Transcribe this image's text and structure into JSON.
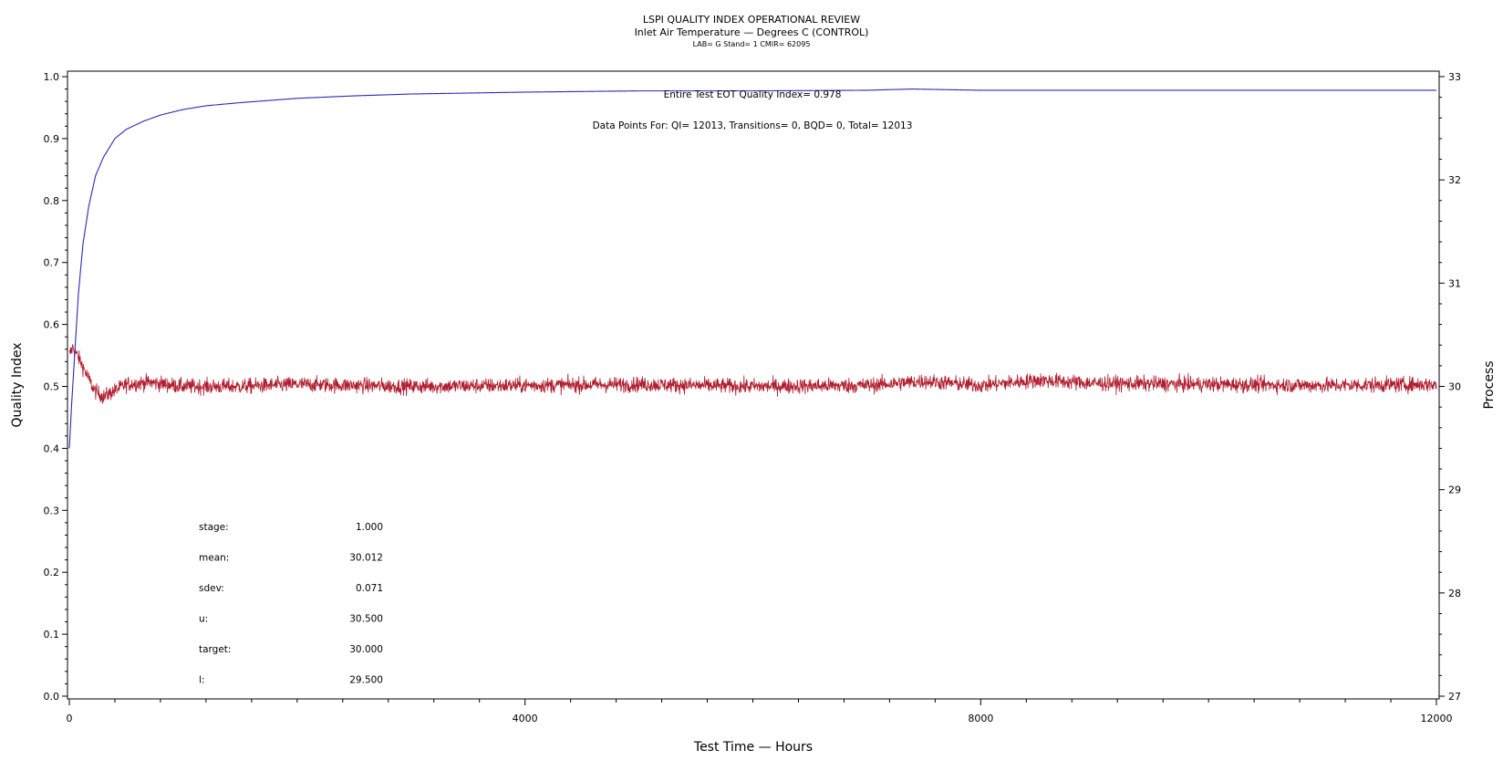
{
  "chart_data": {
    "type": "line",
    "title": "LSPI QUALITY INDEX OPERATIONAL REVIEW",
    "subtitle": "Inlet Air Temperature — Degrees C (CONTROL)",
    "subtitle2": "LAB= G Stand= 1 CMIR= 62095",
    "xlabel": "Test Time — Hours",
    "ylabel_left": "Quality Index",
    "ylabel_right": "Process",
    "xlim": [
      0,
      12000
    ],
    "ylim_left": [
      0.0,
      1.0
    ],
    "ylim_right": [
      27,
      33
    ],
    "x_ticks": [
      "0",
      "4000",
      "8000",
      "12000"
    ],
    "y_left_ticks": [
      "0.0",
      "0.1",
      "0.2",
      "0.3",
      "0.4",
      "0.5",
      "0.6",
      "0.7",
      "0.8",
      "0.9",
      "1.0"
    ],
    "y_right_ticks": [
      "27",
      "28",
      "29",
      "30",
      "31",
      "32",
      "33"
    ],
    "annotation_qi": "Entire Test EOT Quality Index=   0.978",
    "annotation_points": "Data Points For: QI= 12013, Transitions=     0, BQD=     0, Total= 12013",
    "stats": [
      {
        "label": "stage:",
        "value": "1.000"
      },
      {
        "label": "mean:",
        "value": "30.012"
      },
      {
        "label": "sdev:",
        "value": "0.071"
      },
      {
        "label": "u:",
        "value": "30.500"
      },
      {
        "label": "target:",
        "value": "30.000"
      },
      {
        "label": "l:",
        "value": "29.500"
      }
    ],
    "series": [
      {
        "axis": "left",
        "color": "#2a2ab8",
        "x": [
          0,
          20,
          50,
          80,
          120,
          170,
          230,
          300,
          400,
          500,
          650,
          800,
          1000,
          1200,
          1500,
          2000,
          2500,
          3000,
          4000,
          5000,
          6000,
          7000,
          7400,
          8000,
          9000,
          10000,
          11000,
          12000
        ],
        "y": [
          0.4,
          0.47,
          0.56,
          0.65,
          0.73,
          0.79,
          0.84,
          0.87,
          0.9,
          0.915,
          0.928,
          0.938,
          0.947,
          0.953,
          0.958,
          0.965,
          0.969,
          0.972,
          0.975,
          0.977,
          0.977,
          0.978,
          0.98,
          0.978,
          0.978,
          0.978,
          0.978,
          0.978
        ]
      },
      {
        "axis": "right",
        "color": "#b01c2e",
        "mean": 30.012,
        "sdev": 0.071,
        "x": [
          0,
          30,
          80,
          150,
          220,
          300,
          400,
          500,
          700,
          1000,
          1500,
          2000,
          3000,
          4000,
          5000,
          6000,
          7000,
          7500,
          8000,
          8500,
          9000,
          10000,
          11000,
          12000
        ],
        "y": [
          30.3,
          30.38,
          30.28,
          30.12,
          29.96,
          29.9,
          29.96,
          30.02,
          30.04,
          30.0,
          30.0,
          30.02,
          30.0,
          30.01,
          30.02,
          30.0,
          30.01,
          30.05,
          30.01,
          30.06,
          30.03,
          30.02,
          30.01,
          30.02
        ]
      }
    ]
  }
}
